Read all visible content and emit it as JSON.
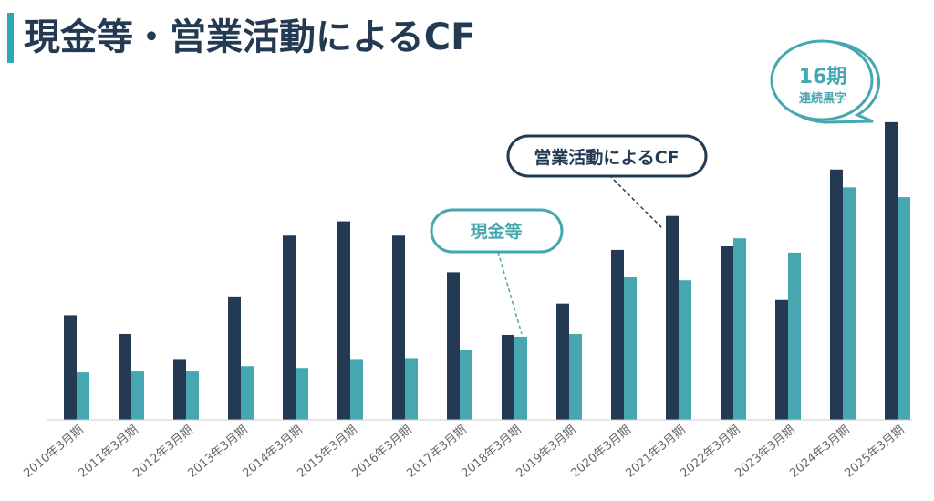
{
  "title": "現金等・営業活動によるCF",
  "colors": {
    "accent": "#2fa7b0",
    "operating_cf": "#233a52",
    "cash": "#46a7b1",
    "axis": "#cccccc"
  },
  "callouts": {
    "operating_cf": "営業活動によるCF",
    "cash": "現金等",
    "streak_number": "16期",
    "streak_text": "連続黒字"
  },
  "chart_data": {
    "type": "bar",
    "categories": [
      "2010年3月期",
      "2011年3月期",
      "2012年3月期",
      "2013年3月期",
      "2014年3月期",
      "2015年3月期",
      "2016年3月期",
      "2017年3月期",
      "2018年3月期",
      "2019年3月期",
      "2020年3月期",
      "2021年3月期",
      "2022年3月期",
      "2023年3月期",
      "2024年3月期",
      "2025年3月期"
    ],
    "series": [
      {
        "name": "営業活動によるCF",
        "values": [
          117,
          96,
          68,
          138,
          206,
          222,
          206,
          165,
          95,
          130,
          190,
          228,
          194,
          134,
          280,
          333
        ]
      },
      {
        "name": "現金等",
        "values": [
          53,
          54,
          54,
          60,
          58,
          68,
          69,
          78,
          93,
          96,
          160,
          156,
          203,
          187,
          260,
          249
        ]
      }
    ],
    "ylim": [
      0,
      340
    ],
    "grid": false,
    "legend": "none"
  }
}
